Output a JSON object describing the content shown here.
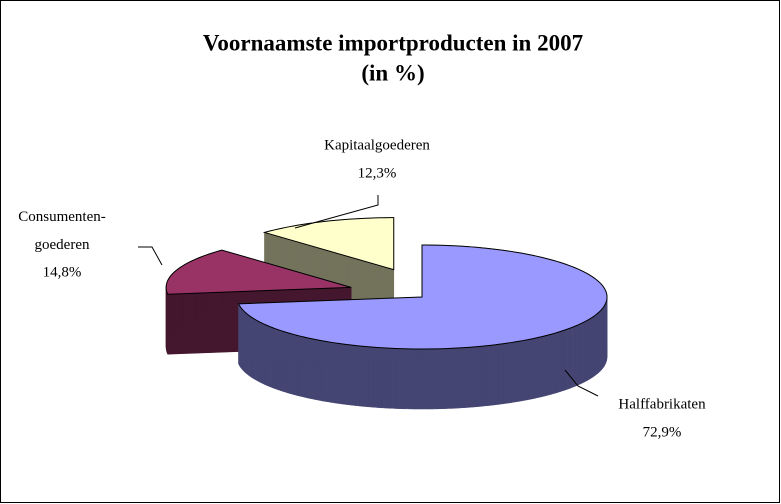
{
  "chart_data": {
    "type": "pie3d",
    "title": "Voornaamste importproducten in 2007",
    "subtitle": "(in %)",
    "categories": [
      "Halffabrikaten",
      "Consumenten-goederen",
      "Kapitaalgoederen"
    ],
    "values": [
      72.9,
      14.8,
      12.3
    ],
    "value_labels": [
      "72,9%",
      "14,8%",
      "12,3%"
    ],
    "colors": [
      "#9999ff",
      "#993366",
      "#ffffcc"
    ]
  }
}
